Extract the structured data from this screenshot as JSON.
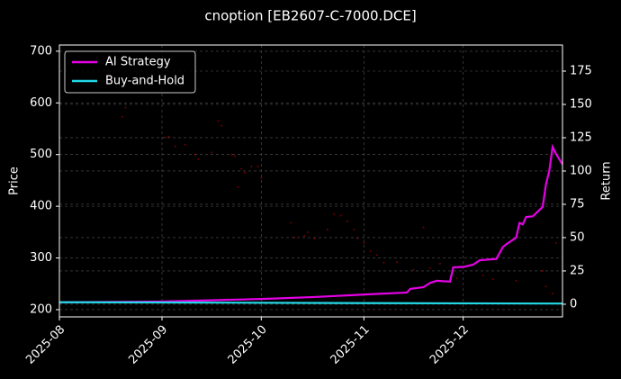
{
  "chart_data": {
    "type": "line",
    "title": "cnoption [EB2607-C-7000.DCE]",
    "ylabel": "Price",
    "y2label": "Return",
    "xlim": [
      0,
      152
    ],
    "xticks": [
      {
        "value": 0,
        "label": "2025-08"
      },
      {
        "value": 31,
        "label": "2025-09"
      },
      {
        "value": 61,
        "label": "2025-10"
      },
      {
        "value": 92,
        "label": "2025-11"
      },
      {
        "value": 122,
        "label": "2025-12"
      }
    ],
    "ylim": [
      186,
      712
    ],
    "yticks": [
      200,
      300,
      400,
      500,
      600,
      700
    ],
    "y2lim": [
      -9.5,
      194.6
    ],
    "y2ticks": [
      0,
      25,
      50,
      75,
      100,
      125,
      150,
      175
    ],
    "grid": true,
    "legend": "upper left",
    "price_points": {
      "color": "#ff0000",
      "x": [
        19,
        20,
        32,
        33,
        35,
        38,
        41,
        42,
        46,
        48,
        49,
        52,
        53,
        54,
        55,
        56,
        58,
        60,
        61,
        70,
        71,
        74,
        75,
        77,
        81,
        83,
        85,
        87,
        89,
        90,
        92,
        94,
        96,
        98,
        102,
        107,
        110,
        112,
        115,
        120,
        128,
        131,
        138,
        146,
        147,
        149,
        150
      ],
      "values": [
        573,
        591,
        533,
        535,
        516,
        519,
        500,
        491,
        504,
        565,
        556,
        500,
        497,
        437,
        472,
        465,
        477,
        477,
        455,
        368,
        340,
        343,
        350,
        338,
        355,
        385,
        382,
        371,
        355,
        338,
        329,
        313,
        306,
        291,
        292,
        277,
        359,
        280,
        289,
        261,
        266,
        259,
        256,
        275,
        245,
        231,
        329
      ]
    },
    "series": [
      {
        "name": "AI Strategy",
        "color": "#e600e6",
        "axis": "y2",
        "x": [
          0,
          31,
          62,
          77,
          93,
          105,
          106,
          110,
          112,
          114,
          118,
          119,
          122,
          125,
          127,
          132,
          134,
          135,
          138,
          139,
          140,
          141,
          143,
          146,
          147,
          148,
          149,
          150,
          152
        ],
        "values": [
          1.4,
          2,
          4,
          5.4,
          7.4,
          8.8,
          11.5,
          12.8,
          16,
          17.6,
          17,
          27.7,
          28,
          29.7,
          33,
          34,
          43,
          45,
          50,
          61,
          60,
          65.5,
          66,
          73,
          90,
          100,
          118,
          113,
          105
        ]
      },
      {
        "name": "Buy-and-Hold",
        "color": "#22d8e6",
        "axis": "y2",
        "x": [
          0,
          50,
          100,
          152
        ],
        "values": [
          1.5,
          1.2,
          0.8,
          0.5
        ]
      }
    ]
  }
}
